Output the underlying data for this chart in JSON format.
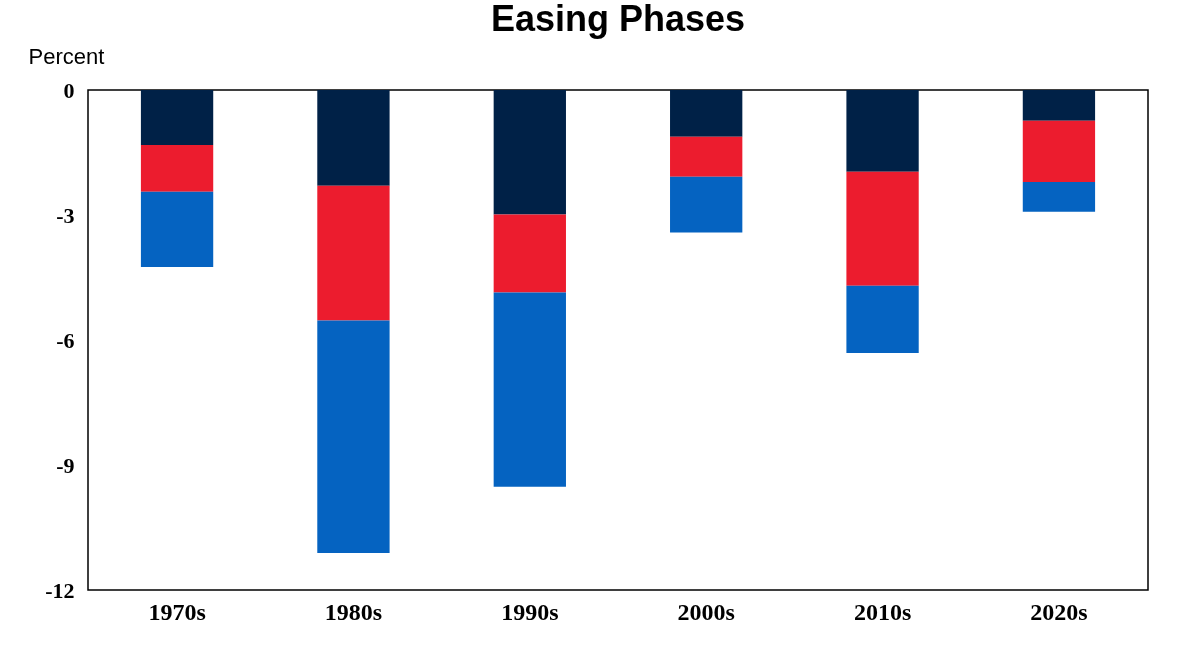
{
  "chart_data": {
    "type": "bar",
    "title": "Easing Phases",
    "ylabel": "Percent",
    "stacked": true,
    "categories": [
      "1970s",
      "1980s",
      "1990s",
      "2000s",
      "2010s",
      "2020s"
    ],
    "series": [
      {
        "color": "#002147",
        "values": [
          -1.32,
          -2.3,
          -2.99,
          -1.12,
          -1.96,
          -0.74
        ]
      },
      {
        "color": "#ec1c2e",
        "values": [
          -1.12,
          -3.23,
          -1.87,
          -0.96,
          -2.74,
          -1.47
        ]
      },
      {
        "color": "#0563c1",
        "values": [
          -1.81,
          -5.58,
          -4.66,
          -1.34,
          -1.61,
          -0.71
        ]
      }
    ],
    "ylim": [
      -12,
      0
    ],
    "yticks": [
      -12,
      -9,
      -6,
      -3,
      0
    ]
  }
}
